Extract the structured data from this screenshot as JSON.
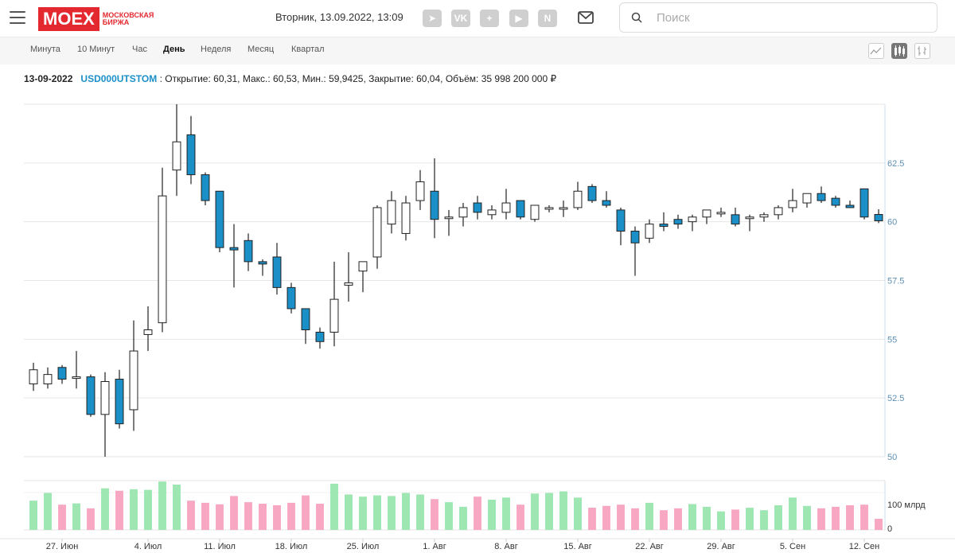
{
  "header": {
    "logo_main": "MOEX",
    "logo_sub": "МОСКОВСКАЯ БИРЖА",
    "datetime": "Вторник, 13.09.2022, 13:09",
    "search_placeholder": "Поиск",
    "social": [
      {
        "icon": "telegram-icon",
        "glyph": "➤"
      },
      {
        "icon": "vk-icon",
        "glyph": "VK"
      },
      {
        "icon": "odnoklassniki-icon",
        "glyph": "+"
      },
      {
        "icon": "youtube-icon",
        "glyph": "▶"
      },
      {
        "icon": "news-icon",
        "glyph": "N"
      }
    ]
  },
  "tabs": [
    "Минута",
    "10 Минут",
    "Час",
    "День",
    "Неделя",
    "Месяц",
    "Квартал"
  ],
  "active_tab": "День",
  "chart_types": [
    "line-chart-icon",
    "candlestick-chart-icon",
    "ohlc-chart-icon"
  ],
  "active_chart_type": "candlestick-chart-icon",
  "info": {
    "date": "13-09-2022",
    "ticker": "USD000UTSTOM",
    "rest": ": Открытие: 60,31, Макс.: 60,53, Мин.: 59,9425, Закрытие: 60,04, Объём: 35 998 200 000 ₽"
  },
  "colors": {
    "up_fill": "#ffffff",
    "down_fill": "#1b8fc7",
    "vol_up": "#9ee6b2",
    "vol_down": "#f7a7c1",
    "axis": "#5c8fb3"
  },
  "chart_data": {
    "type": "candlestick",
    "ylim": [
      50,
      65
    ],
    "y_ticks": [
      50,
      52.5,
      55,
      57.5,
      60,
      62.5
    ],
    "y_tick_labels": [
      "50",
      "52.5",
      "55",
      "57.5",
      "60",
      "62.5"
    ],
    "volume_ticks": [
      "0",
      "100 млрд"
    ],
    "volume_max": 160,
    "x_labels": [
      {
        "label": "27. Июн",
        "index": 2
      },
      {
        "label": "4. Июл",
        "index": 8
      },
      {
        "label": "11. Июл",
        "index": 13
      },
      {
        "label": "18. Июл",
        "index": 18
      },
      {
        "label": "25. Июл",
        "index": 23
      },
      {
        "label": "1. Авг",
        "index": 28
      },
      {
        "label": "8. Авг",
        "index": 33
      },
      {
        "label": "15. Авг",
        "index": 38
      },
      {
        "label": "22. Авг",
        "index": 43
      },
      {
        "label": "29. Авг",
        "index": 48
      },
      {
        "label": "5. Сен",
        "index": 53
      },
      {
        "label": "12. Сен",
        "index": 58
      }
    ],
    "candles": [
      {
        "o": 53.1,
        "h": 54.0,
        "l": 52.8,
        "c": 53.7,
        "v": 95
      },
      {
        "o": 53.1,
        "h": 53.8,
        "l": 52.9,
        "c": 53.5,
        "v": 120
      },
      {
        "o": 53.8,
        "h": 53.9,
        "l": 53.1,
        "c": 53.3,
        "v": 82
      },
      {
        "o": 53.4,
        "h": 54.5,
        "l": 52.9,
        "c": 53.4,
        "v": 86
      },
      {
        "o": 53.4,
        "h": 53.5,
        "l": 51.7,
        "c": 51.8,
        "v": 70
      },
      {
        "o": 51.8,
        "h": 53.6,
        "l": 50.0,
        "c": 53.2,
        "v": 135
      },
      {
        "o": 53.3,
        "h": 53.7,
        "l": 51.2,
        "c": 51.4,
        "v": 127
      },
      {
        "o": 52.0,
        "h": 55.8,
        "l": 51.1,
        "c": 54.5,
        "v": 132
      },
      {
        "o": 55.2,
        "h": 56.4,
        "l": 54.5,
        "c": 55.4,
        "v": 130
      },
      {
        "o": 55.7,
        "h": 62.3,
        "l": 55.3,
        "c": 61.1,
        "v": 157
      },
      {
        "o": 62.2,
        "h": 65.0,
        "l": 61.1,
        "c": 63.4,
        "v": 147
      },
      {
        "o": 63.7,
        "h": 64.5,
        "l": 61.6,
        "c": 62.0,
        "v": 95
      },
      {
        "o": 62.0,
        "h": 62.1,
        "l": 60.7,
        "c": 60.9,
        "v": 88
      },
      {
        "o": 61.3,
        "h": 61.3,
        "l": 58.7,
        "c": 58.9,
        "v": 83
      },
      {
        "o": 58.9,
        "h": 59.9,
        "l": 57.2,
        "c": 58.8,
        "v": 110
      },
      {
        "o": 59.2,
        "h": 59.5,
        "l": 57.9,
        "c": 58.3,
        "v": 90
      },
      {
        "o": 58.3,
        "h": 58.4,
        "l": 57.7,
        "c": 58.2,
        "v": 85
      },
      {
        "o": 58.5,
        "h": 59.1,
        "l": 56.9,
        "c": 57.2,
        "v": 80
      },
      {
        "o": 57.2,
        "h": 57.4,
        "l": 56.1,
        "c": 56.3,
        "v": 88
      },
      {
        "o": 56.3,
        "h": 56.3,
        "l": 54.8,
        "c": 55.4,
        "v": 112
      },
      {
        "o": 55.3,
        "h": 55.5,
        "l": 54.6,
        "c": 54.9,
        "v": 85
      },
      {
        "o": 55.3,
        "h": 58.3,
        "l": 54.7,
        "c": 56.7,
        "v": 150
      },
      {
        "o": 57.3,
        "h": 58.7,
        "l": 56.6,
        "c": 57.4,
        "v": 115
      },
      {
        "o": 57.9,
        "h": 58.3,
        "l": 57.0,
        "c": 58.3,
        "v": 108
      },
      {
        "o": 58.5,
        "h": 60.7,
        "l": 58.0,
        "c": 60.6,
        "v": 112
      },
      {
        "o": 59.9,
        "h": 61.3,
        "l": 59.5,
        "c": 60.9,
        "v": 110
      },
      {
        "o": 59.5,
        "h": 61.1,
        "l": 59.2,
        "c": 60.8,
        "v": 120
      },
      {
        "o": 60.9,
        "h": 62.2,
        "l": 60.5,
        "c": 61.7,
        "v": 115
      },
      {
        "o": 61.3,
        "h": 62.7,
        "l": 59.3,
        "c": 60.1,
        "v": 100
      },
      {
        "o": 60.2,
        "h": 60.5,
        "l": 59.4,
        "c": 60.2,
        "v": 90
      },
      {
        "o": 60.2,
        "h": 60.8,
        "l": 59.8,
        "c": 60.6,
        "v": 75
      },
      {
        "o": 60.8,
        "h": 61.1,
        "l": 60.1,
        "c": 60.4,
        "v": 108
      },
      {
        "o": 60.3,
        "h": 60.7,
        "l": 60.1,
        "c": 60.5,
        "v": 98
      },
      {
        "o": 60.4,
        "h": 61.4,
        "l": 60.1,
        "c": 60.8,
        "v": 105
      },
      {
        "o": 60.9,
        "h": 60.9,
        "l": 60.1,
        "c": 60.2,
        "v": 82
      },
      {
        "o": 60.1,
        "h": 60.7,
        "l": 60.0,
        "c": 60.7,
        "v": 118
      },
      {
        "o": 60.6,
        "h": 60.7,
        "l": 60.4,
        "c": 60.6,
        "v": 120
      },
      {
        "o": 60.6,
        "h": 60.9,
        "l": 60.2,
        "c": 60.6,
        "v": 125
      },
      {
        "o": 60.6,
        "h": 61.7,
        "l": 60.5,
        "c": 61.3,
        "v": 105
      },
      {
        "o": 61.5,
        "h": 61.6,
        "l": 60.8,
        "c": 60.9,
        "v": 72
      },
      {
        "o": 60.9,
        "h": 61.3,
        "l": 60.6,
        "c": 60.7,
        "v": 78
      },
      {
        "o": 60.5,
        "h": 60.6,
        "l": 59.0,
        "c": 59.6,
        "v": 82
      },
      {
        "o": 59.6,
        "h": 59.8,
        "l": 57.7,
        "c": 59.1,
        "v": 70
      },
      {
        "o": 59.3,
        "h": 60.1,
        "l": 59.1,
        "c": 59.9,
        "v": 88
      },
      {
        "o": 59.9,
        "h": 60.4,
        "l": 59.6,
        "c": 59.8,
        "v": 64
      },
      {
        "o": 60.1,
        "h": 60.3,
        "l": 59.7,
        "c": 59.9,
        "v": 70
      },
      {
        "o": 60.0,
        "h": 60.3,
        "l": 59.6,
        "c": 60.2,
        "v": 84
      },
      {
        "o": 60.2,
        "h": 60.5,
        "l": 59.9,
        "c": 60.5,
        "v": 75
      },
      {
        "o": 60.4,
        "h": 60.6,
        "l": 60.2,
        "c": 60.4,
        "v": 60
      },
      {
        "o": 60.3,
        "h": 60.6,
        "l": 59.8,
        "c": 59.9,
        "v": 66
      },
      {
        "o": 60.2,
        "h": 60.3,
        "l": 59.6,
        "c": 60.2,
        "v": 72
      },
      {
        "o": 60.2,
        "h": 60.4,
        "l": 60.0,
        "c": 60.3,
        "v": 64
      },
      {
        "o": 60.3,
        "h": 60.7,
        "l": 60.1,
        "c": 60.6,
        "v": 80
      },
      {
        "o": 60.6,
        "h": 61.4,
        "l": 60.4,
        "c": 60.9,
        "v": 105
      },
      {
        "o": 60.8,
        "h": 61.2,
        "l": 60.6,
        "c": 61.2,
        "v": 78
      },
      {
        "o": 61.2,
        "h": 61.5,
        "l": 60.8,
        "c": 60.9,
        "v": 70
      },
      {
        "o": 61.0,
        "h": 61.1,
        "l": 60.6,
        "c": 60.7,
        "v": 75
      },
      {
        "o": 60.7,
        "h": 60.9,
        "l": 60.6,
        "c": 60.6,
        "v": 80
      },
      {
        "o": 61.4,
        "h": 61.4,
        "l": 60.1,
        "c": 60.2,
        "v": 82
      },
      {
        "o": 60.31,
        "h": 60.53,
        "l": 59.9425,
        "c": 60.04,
        "v": 36
      }
    ]
  }
}
